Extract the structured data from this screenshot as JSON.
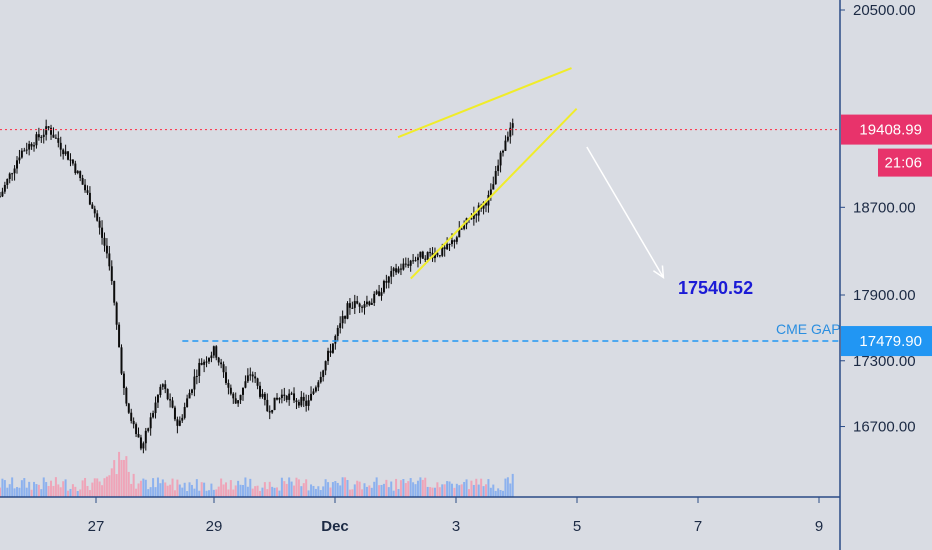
{
  "chart_data": {
    "type": "candlestick",
    "instrument_timeframe": "hourly",
    "x_ticks": [
      "27",
      "29",
      "Dec",
      "3",
      "5",
      "7",
      "9"
    ],
    "y_ticks": [
      20500.0,
      18700.0,
      17900.0,
      17300.0,
      16700.0
    ],
    "y_tick_labels": [
      "20500.00",
      "18700.00",
      "17900.00",
      "17300.00",
      "16700.00"
    ],
    "ylim": [
      16180,
      20770
    ],
    "price_path": [
      [
        0,
        18800
      ],
      [
        0.5,
        19200
      ],
      [
        1.2,
        19420
      ],
      [
        1.8,
        19100
      ],
      [
        2.3,
        18700
      ],
      [
        2.7,
        18200
      ],
      [
        3.1,
        16900
      ],
      [
        3.5,
        16500
      ],
      [
        4.0,
        17100
      ],
      [
        4.4,
        16700
      ],
      [
        4.9,
        17250
      ],
      [
        5.3,
        17400
      ],
      [
        5.8,
        16900
      ],
      [
        6.2,
        17200
      ],
      [
        6.6,
        16850
      ],
      [
        7.0,
        17000
      ],
      [
        7.6,
        16900
      ],
      [
        8.1,
        17350
      ],
      [
        8.6,
        17800
      ],
      [
        9.2,
        17850
      ],
      [
        9.7,
        18100
      ],
      [
        10.3,
        18250
      ],
      [
        11.0,
        18300
      ],
      [
        11.6,
        18600
      ],
      [
        12.1,
        18800
      ],
      [
        12.5,
        19350
      ],
      [
        12.9,
        19700
      ],
      [
        13.3,
        19550
      ],
      [
        13.8,
        19400
      ],
      [
        14.3,
        19650
      ],
      [
        14.8,
        19350
      ],
      [
        15.1,
        18300
      ],
      [
        15.5,
        18900
      ],
      [
        16.0,
        18700
      ],
      [
        16.4,
        19000
      ],
      [
        16.9,
        18600
      ],
      [
        17.3,
        18900
      ],
      [
        17.8,
        19200
      ],
      [
        18.2,
        18950
      ],
      [
        18.7,
        19150
      ],
      [
        19.0,
        19050
      ],
      [
        19.5,
        19400
      ],
      [
        19.9,
        19250
      ],
      [
        20.1,
        19480
      ],
      [
        20.3,
        19409
      ]
    ],
    "volume_profile_peaks": [
      {
        "day": 3.0,
        "level": 0.35
      },
      {
        "day": 13.0,
        "level": 0.6
      },
      {
        "day": 15.0,
        "level": 0.7
      },
      {
        "day": 15.2,
        "level": 0.5
      }
    ],
    "current_price": "19408.99",
    "countdown": "21:06",
    "gap_level": "17479.90",
    "gap_label": "CME GAP",
    "gap_start_day": 3.8,
    "target_label": "17540.52",
    "wedge_upper": [
      [
        15.6,
        19340
      ],
      [
        22.4,
        19970
      ]
    ],
    "wedge_lower": [
      [
        16.1,
        18050
      ],
      [
        22.6,
        19600
      ]
    ],
    "arrow": [
      [
        23.0,
        19250
      ],
      [
        26.0,
        18060
      ]
    ],
    "x_day_scale": {
      "first_tick_day": 3.55,
      "day_step": 2.37
    }
  },
  "colors": {
    "background": "#d9dce3",
    "price_line": "#0c0c0c",
    "axis_border": "#2a4b86",
    "wedge": "#f0ec2a",
    "arrow": "#ffffff",
    "price_tag": "#e8336b",
    "gap_tag": "#2196f3",
    "gap_line": "#2196f3",
    "current_price_line": "#ff2a40",
    "volume_up": "#7ea9f0",
    "volume_down": "#f29ab0"
  }
}
